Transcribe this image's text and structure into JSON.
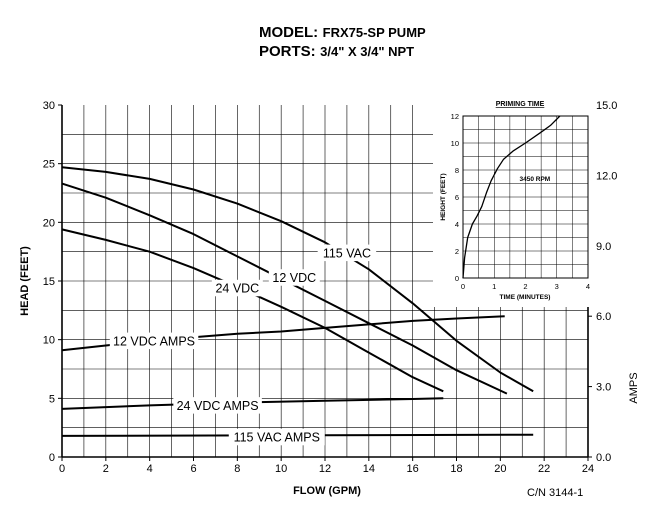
{
  "header": {
    "model_label": "MODEL:",
    "model_value": "FRX75-SP PUMP",
    "ports_label": "PORTS:",
    "ports_value": "3/4\" X 3/4\" NPT"
  },
  "catalog_number": "C/N 3144-1",
  "colors": {
    "ink": "#000000",
    "grid": "#000000",
    "background": "#ffffff"
  },
  "chart_data": [
    {
      "type": "line",
      "xlabel": "FLOW (GPM)",
      "ylabel": "HEAD (FEET)",
      "y2label": "AMPS",
      "xlim": [
        0,
        24
      ],
      "ylim": [
        0,
        30
      ],
      "y2lim": [
        0,
        15
      ],
      "xticks": [
        "0",
        "2",
        "4",
        "6",
        "8",
        "10",
        "12",
        "14",
        "16",
        "18",
        "20",
        "22",
        "24"
      ],
      "yticks": [
        "0",
        "5",
        "10",
        "15",
        "20",
        "25",
        "30"
      ],
      "y2ticks": [
        "0.0",
        "3.0",
        "6.0",
        "9.0",
        "12.0",
        "15.0"
      ],
      "grid": true,
      "series": [
        {
          "name": "115 VAC",
          "axis": "head",
          "x": [
            0,
            2,
            4,
            6,
            8,
            10,
            12,
            14,
            16,
            18,
            20,
            21.5
          ],
          "y": [
            24.7,
            24.3,
            23.7,
            22.8,
            21.6,
            20.1,
            18.3,
            16.0,
            13.1,
            9.9,
            7.2,
            5.6
          ]
        },
        {
          "name": "12 VDC",
          "axis": "head",
          "x": [
            0,
            2,
            4,
            6,
            8,
            10,
            12,
            14,
            16,
            18,
            20.3
          ],
          "y": [
            23.3,
            22.1,
            20.6,
            19.0,
            17.1,
            15.2,
            13.3,
            11.4,
            9.5,
            7.4,
            5.4
          ]
        },
        {
          "name": "24 VDC",
          "axis": "head",
          "x": [
            0,
            2,
            4,
            6,
            8,
            10,
            12,
            14,
            16,
            17.4
          ],
          "y": [
            19.4,
            18.5,
            17.5,
            16.1,
            14.5,
            12.8,
            11.0,
            8.9,
            6.8,
            5.6
          ]
        },
        {
          "name": "12 VDC AMPS",
          "axis": "amps",
          "x": [
            0,
            2,
            4,
            6,
            8,
            10,
            12,
            14,
            16,
            18,
            20.2
          ],
          "y": [
            4.55,
            4.75,
            4.95,
            5.1,
            5.25,
            5.35,
            5.5,
            5.65,
            5.8,
            5.9,
            6.0
          ]
        },
        {
          "name": "24 VDC AMPS",
          "axis": "amps",
          "x": [
            0,
            4,
            8,
            12,
            16,
            17.4
          ],
          "y": [
            2.05,
            2.2,
            2.32,
            2.4,
            2.47,
            2.5
          ]
        },
        {
          "name": "115 VAC AMPS",
          "axis": "amps",
          "x": [
            0,
            21.5
          ],
          "y": [
            0.9,
            0.95
          ]
        }
      ],
      "labels": [
        {
          "text": "115 VAC",
          "x": 13.0,
          "y": 17.4
        },
        {
          "text": "12 VDC",
          "x": 10.6,
          "y": 15.3
        },
        {
          "text": "24 VDC",
          "x": 8.0,
          "y": 14.4
        },
        {
          "text": "12 VDC AMPS",
          "x": 4.2,
          "y": 9.9
        },
        {
          "text": "24 VDC AMPS",
          "x": 7.1,
          "y": 4.4
        },
        {
          "text": "115 VAC AMPS",
          "x": 9.8,
          "y": 1.7
        }
      ]
    },
    {
      "type": "line",
      "title": "PRIMING TIME",
      "xlabel": "TIME (MINUTES)",
      "ylabel": "HEIGHT (FEET)",
      "xlim": [
        0,
        4
      ],
      "ylim": [
        0,
        12
      ],
      "xticks": [
        "0",
        "1",
        "2",
        "3",
        "4"
      ],
      "yticks": [
        "0",
        "2",
        "4",
        "6",
        "8",
        "10",
        "12"
      ],
      "grid": true,
      "annotation": {
        "text": "3450 RPM",
        "x": 2.3,
        "y": 7.4
      },
      "series": [
        {
          "name": "3450 RPM",
          "x": [
            0,
            0.05,
            0.15,
            0.3,
            0.45,
            0.6,
            0.75,
            0.9,
            1.1,
            1.3,
            1.6,
            2.0,
            2.5,
            2.8,
            3.1
          ],
          "y": [
            0,
            1.5,
            3.0,
            4.0,
            4.6,
            5.3,
            6.3,
            7.2,
            8.1,
            8.8,
            9.4,
            10.0,
            10.8,
            11.3,
            12.0
          ]
        }
      ]
    }
  ]
}
